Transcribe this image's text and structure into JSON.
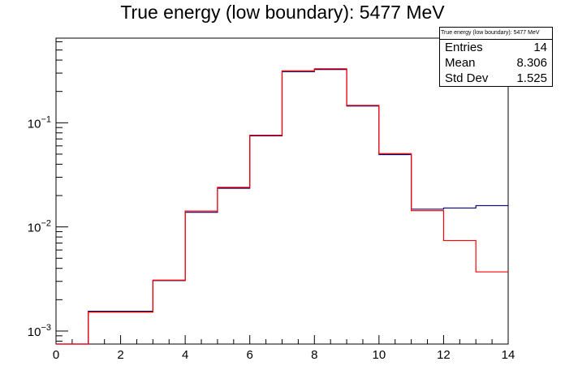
{
  "chart_data": {
    "type": "histogram",
    "title": "True energy (low boundary): 5477 MeV",
    "x_edges": [
      0,
      1,
      2,
      3,
      4,
      5,
      6,
      7,
      8,
      9,
      10,
      11,
      12,
      13,
      14
    ],
    "xlim": [
      0,
      14
    ],
    "ylim": [
      0.00075,
      0.65
    ],
    "yscale": "log",
    "xticks": [
      0,
      2,
      4,
      6,
      8,
      10,
      12,
      14
    ],
    "ytick_labels": [
      {
        "value": 0.1,
        "base": "10",
        "exp": "−1"
      },
      {
        "value": 0.01,
        "base": "10",
        "exp": "−2"
      },
      {
        "value": 0.001,
        "base": "10",
        "exp": "−3"
      }
    ],
    "series": [
      {
        "color": "#000080",
        "values": [
          0.00075,
          0.00155,
          0.00155,
          0.00305,
          0.0138,
          0.0235,
          0.075,
          0.31,
          0.325,
          0.145,
          0.0495,
          0.0148,
          0.0152,
          0.016
        ]
      },
      {
        "color": "#ff0000",
        "values": [
          0.00075,
          0.00152,
          0.00152,
          0.00308,
          0.0142,
          0.024,
          0.076,
          0.315,
          0.33,
          0.147,
          0.0505,
          0.0143,
          0.0074,
          0.0037
        ]
      }
    ],
    "stats": {
      "title": "True energy (low boundary): 5477 MeV",
      "entries_label": "Entries",
      "entries": "14",
      "mean_label": "Mean",
      "mean": "8.306",
      "std_label": "Std Dev",
      "std": "1.525"
    },
    "grid": false,
    "legend": "top-right"
  }
}
